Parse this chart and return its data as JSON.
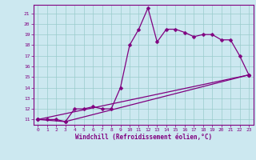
{
  "title": "",
  "xlabel": "Windchill (Refroidissement éolien,°C)",
  "background_color": "#cce8f0",
  "line_color": "#800080",
  "grid_color": "#99cccc",
  "x_ticks": [
    0,
    1,
    2,
    3,
    4,
    5,
    6,
    7,
    8,
    9,
    10,
    11,
    12,
    13,
    14,
    15,
    16,
    17,
    18,
    19,
    20,
    21,
    22,
    23
  ],
  "y_ticks": [
    11,
    12,
    13,
    14,
    15,
    16,
    17,
    18,
    19,
    20,
    21
  ],
  "xlim": [
    -0.5,
    23.5
  ],
  "ylim": [
    10.5,
    21.8
  ],
  "series1_x": [
    0,
    1,
    2,
    3,
    4,
    5,
    6,
    7,
    8,
    9,
    10,
    11,
    12,
    13,
    14,
    15,
    16,
    17,
    18,
    19,
    20,
    21,
    22,
    23
  ],
  "series1_y": [
    11,
    11,
    11,
    10.8,
    12,
    12,
    12.2,
    12,
    12,
    14,
    18,
    19.5,
    21.5,
    18.3,
    19.5,
    19.5,
    19.2,
    18.8,
    19,
    19,
    18.5,
    18.5,
    17,
    15.2
  ],
  "series2_x": [
    0,
    23
  ],
  "series2_y": [
    11,
    15.2
  ],
  "series3_x": [
    0,
    3,
    23
  ],
  "series3_y": [
    11,
    10.8,
    15.2
  ],
  "marker": "D",
  "marker_size": 2.5,
  "linewidth": 0.9
}
